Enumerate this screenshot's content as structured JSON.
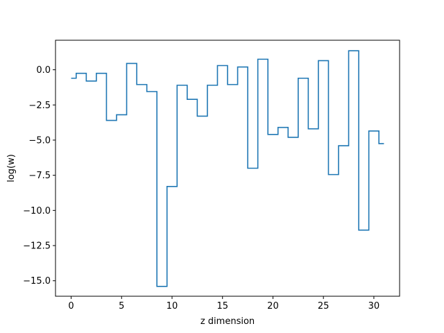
{
  "chart_data": {
    "type": "line",
    "drawstyle": "steps-mid",
    "title": "",
    "xlabel": "z dimension",
    "ylabel": "log(w)",
    "xlim": [
      -1.55,
      32.55
    ],
    "ylim": [
      -16.1,
      2.1
    ],
    "xticks": [
      0,
      5,
      10,
      15,
      20,
      25,
      30
    ],
    "xtick_labels": [
      "0",
      "5",
      "10",
      "15",
      "20",
      "25",
      "30"
    ],
    "yticks": [
      0.0,
      -2.5,
      -5.0,
      -7.5,
      -10.0,
      -12.5,
      -15.0
    ],
    "ytick_labels": [
      "0.0",
      "−2.5",
      "−5.0",
      "−7.5",
      "−10.0",
      "−12.5",
      "−15.0"
    ],
    "grid": false,
    "color": "#1f77b4",
    "series": [
      {
        "x": [
          0,
          1,
          2,
          3,
          4,
          5,
          6,
          7,
          8,
          9,
          10,
          11,
          12,
          13,
          14,
          15,
          16,
          17,
          18,
          19,
          20,
          21,
          22,
          23,
          24,
          25,
          26,
          27,
          28,
          29,
          30,
          31
        ],
        "values": [
          -0.6,
          -0.25,
          -0.8,
          -0.25,
          -3.6,
          -3.2,
          0.45,
          -1.05,
          -1.55,
          -15.4,
          -8.3,
          -1.1,
          -2.1,
          -3.3,
          -1.1,
          0.3,
          -1.05,
          0.2,
          -7.0,
          0.75,
          -4.6,
          -4.1,
          -4.8,
          -0.6,
          -4.2,
          0.65,
          -7.45,
          -5.4,
          1.35,
          -11.4,
          -4.35,
          -5.25
        ]
      }
    ]
  }
}
